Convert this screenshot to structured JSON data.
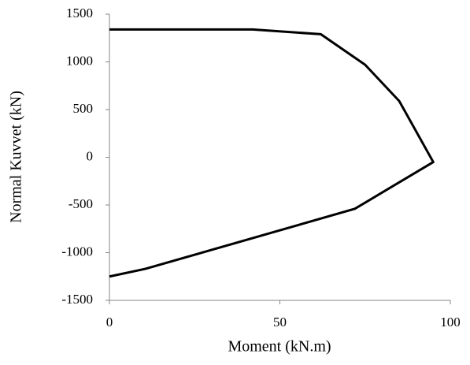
{
  "chart_data": {
    "type": "line",
    "x_label": "Moment (kN.m)",
    "y_label": "Normal Kuvvet (kN)",
    "series": [
      {
        "color": "#000000",
        "x": [
          0,
          42,
          62,
          75,
          85,
          95,
          72,
          10.5,
          0
        ],
        "values": [
          1340,
          1340,
          1290,
          970,
          590,
          -50,
          -540,
          -1170,
          -1250
        ]
      }
    ],
    "xlim": [
      0,
      100
    ],
    "xticks": [
      0,
      50,
      100
    ],
    "ylim": [
      -1500,
      1500
    ],
    "yticks": [
      -1500,
      -1000,
      -500,
      0,
      500,
      1000,
      1500
    ],
    "grid": false
  }
}
